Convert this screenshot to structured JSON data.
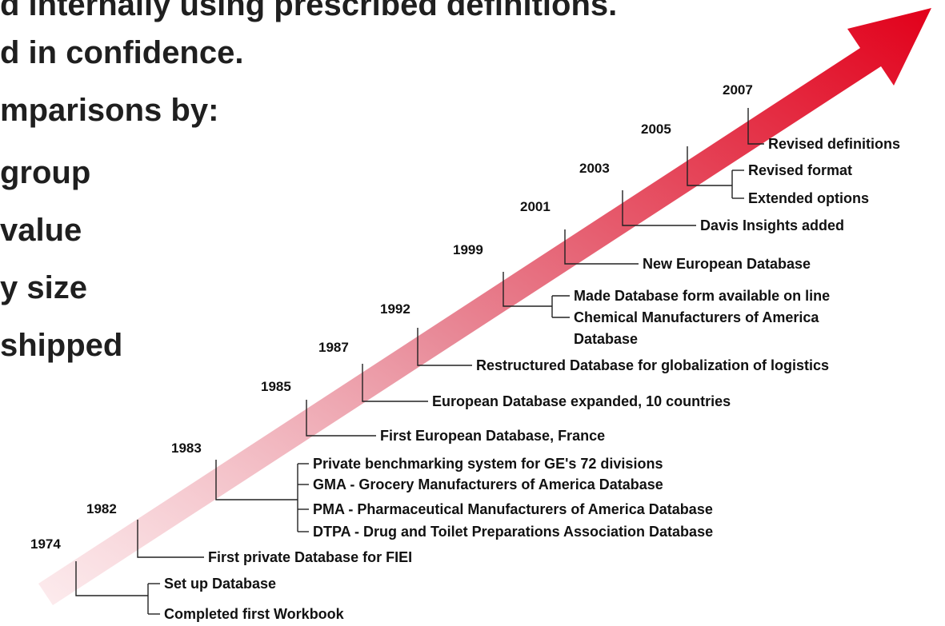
{
  "bullets": [
    "d internally using prescribed definitions.",
    "d in confidence.",
    "mparisons by:",
    "group",
    "value",
    "y size",
    "shipped"
  ],
  "colors": {
    "arrow_start": "#fbe3e6",
    "arrow_end": "#e2001a",
    "text": "#1f1f1f"
  },
  "timeline": {
    "milestones": [
      {
        "year": "1974",
        "events": [
          "Set up Database",
          "Completed first Workbook"
        ]
      },
      {
        "year": "1982",
        "events": [
          "First private Database for FIEI"
        ]
      },
      {
        "year": "1983",
        "events": [
          "Private benchmarking system for GE's 72 divisions",
          "GMA - Grocery Manufacturers of America Database",
          "PMA - Pharmaceutical Manufacturers of America Database",
          "DTPA - Drug and Toilet Preparations Association Database"
        ]
      },
      {
        "year": "1985",
        "events": [
          "First European Database, France"
        ]
      },
      {
        "year": "1987",
        "events": [
          "European Database expanded, 10 countries"
        ]
      },
      {
        "year": "1992",
        "events": [
          "Restructured Database for globalization of logistics"
        ]
      },
      {
        "year": "1999",
        "events": [
          "Made Database form available on line",
          "Chemical Manufacturers of America",
          "Database"
        ]
      },
      {
        "year": "2001",
        "events": [
          "New European Database"
        ]
      },
      {
        "year": "2003",
        "events": [
          "Davis Insights added"
        ]
      },
      {
        "year": "2005",
        "events": [
          "Revised format",
          "Extended options"
        ]
      },
      {
        "year": "2007",
        "events": [
          "Revised definitions"
        ]
      }
    ]
  }
}
